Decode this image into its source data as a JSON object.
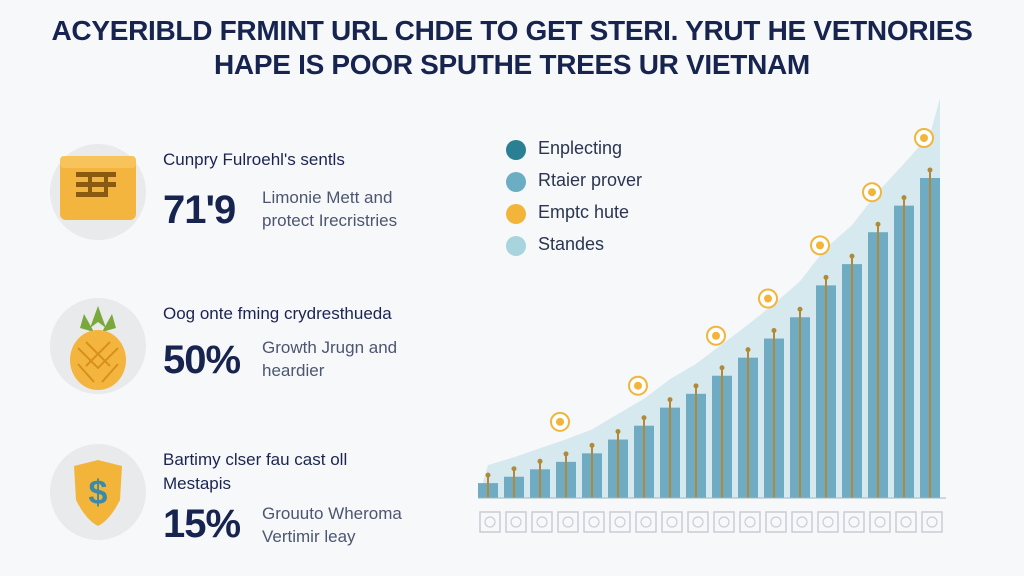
{
  "title": {
    "line1": "ACYERIBLD FRMINT URL CHDE TO GET STERI. YRUT HE VETNORIES",
    "line2": "HAPE IS POOR SPUTHE TREES UR VIETNAM"
  },
  "stats": [
    {
      "icon": "folder-icon",
      "heading": "Cunpry Fulroehl's sentls",
      "value": "71'9",
      "desc_line1": "Limonie Mett and",
      "desc_line2": "protect Irecristries"
    },
    {
      "icon": "pineapple-icon",
      "heading": "Oog onte fming crydresthueda",
      "value": "50%",
      "desc_line1": "Growth Jrugn and",
      "desc_line2": "heardier"
    },
    {
      "icon": "dollar-shield-icon",
      "heading": "Bartimy clser fau cast oll",
      "heading2": "Mestapis",
      "value": "15%",
      "desc_line1": "Grouuto Wheroma",
      "desc_line2": "Vertimir leay"
    }
  ],
  "legend": [
    {
      "label": "Enplecting",
      "color": "#2a7f93"
    },
    {
      "label": "Rtaier prover",
      "color": "#6baec4"
    },
    {
      "label": "Emptc hute",
      "color": "#f2b53a"
    },
    {
      "label": "Standes",
      "color": "#a8d4de"
    }
  ],
  "chart_data": {
    "type": "bar",
    "series": [
      {
        "values": [
          14,
          20,
          27,
          34,
          42,
          55,
          68,
          85,
          98,
          115,
          132,
          150,
          170,
          200,
          220,
          250,
          275,
          301
        ]
      }
    ],
    "colors": {
      "bar": "#6fabc2",
      "area": "#d6e9ef",
      "stem": "#b08a3a",
      "coin": "#f2b53a"
    }
  }
}
